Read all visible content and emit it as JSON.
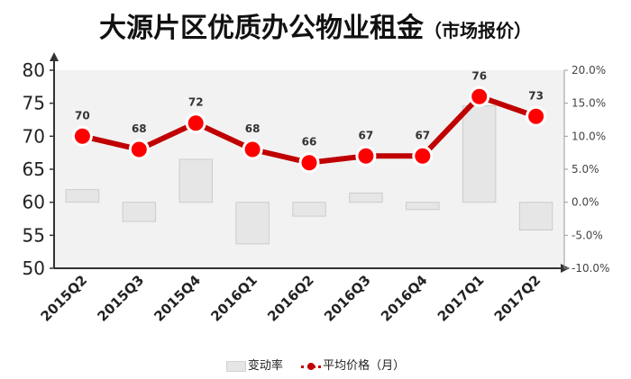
{
  "title": "大源片区优质办公物业租金",
  "subtitle": "（市场报价）",
  "chart_data": {
    "type": "bar+line",
    "title": "大源片区优质办公物业租金（市场报价）",
    "categories": [
      "2015Q2",
      "2015Q3",
      "2015Q4",
      "2016Q1",
      "2016Q2",
      "2016Q3",
      "2016Q4",
      "2017Q1",
      "2017Q2"
    ],
    "series": [
      {
        "name": "变动率",
        "type": "bar",
        "axis": "right",
        "values": [
          0.019,
          -0.029,
          0.065,
          -0.063,
          -0.021,
          0.014,
          -0.011,
          0.146,
          -0.042
        ]
      },
      {
        "name": "平均价格（月）",
        "type": "line",
        "axis": "left",
        "values": [
          70,
          68,
          72,
          68,
          66,
          67,
          67,
          76,
          73
        ],
        "labels": [
          "70",
          "68",
          "72",
          "68",
          "66",
          "67",
          "67",
          "76",
          "73"
        ]
      }
    ],
    "y_left": {
      "min": 50,
      "max": 80,
      "ticks": [
        "50",
        "55",
        "60",
        "65",
        "70",
        "75",
        "80"
      ]
    },
    "y_right": {
      "min": -0.1,
      "max": 0.2,
      "ticks": [
        "-10.0%",
        "-5.0%",
        "0.0%",
        "5.0%",
        "10.0%",
        "15.0%",
        "20.0%"
      ]
    },
    "grid": false,
    "legend_position": "bottom",
    "colors": {
      "line": "#c00000",
      "marker_fill": "#ff0000",
      "bar_fill": "#e6e6e6",
      "bar_stroke": "#cccccc",
      "plot_bg": "#f2f2f2"
    }
  },
  "legend": {
    "bar_label": "变动率",
    "line_label": "平均价格（月）"
  }
}
